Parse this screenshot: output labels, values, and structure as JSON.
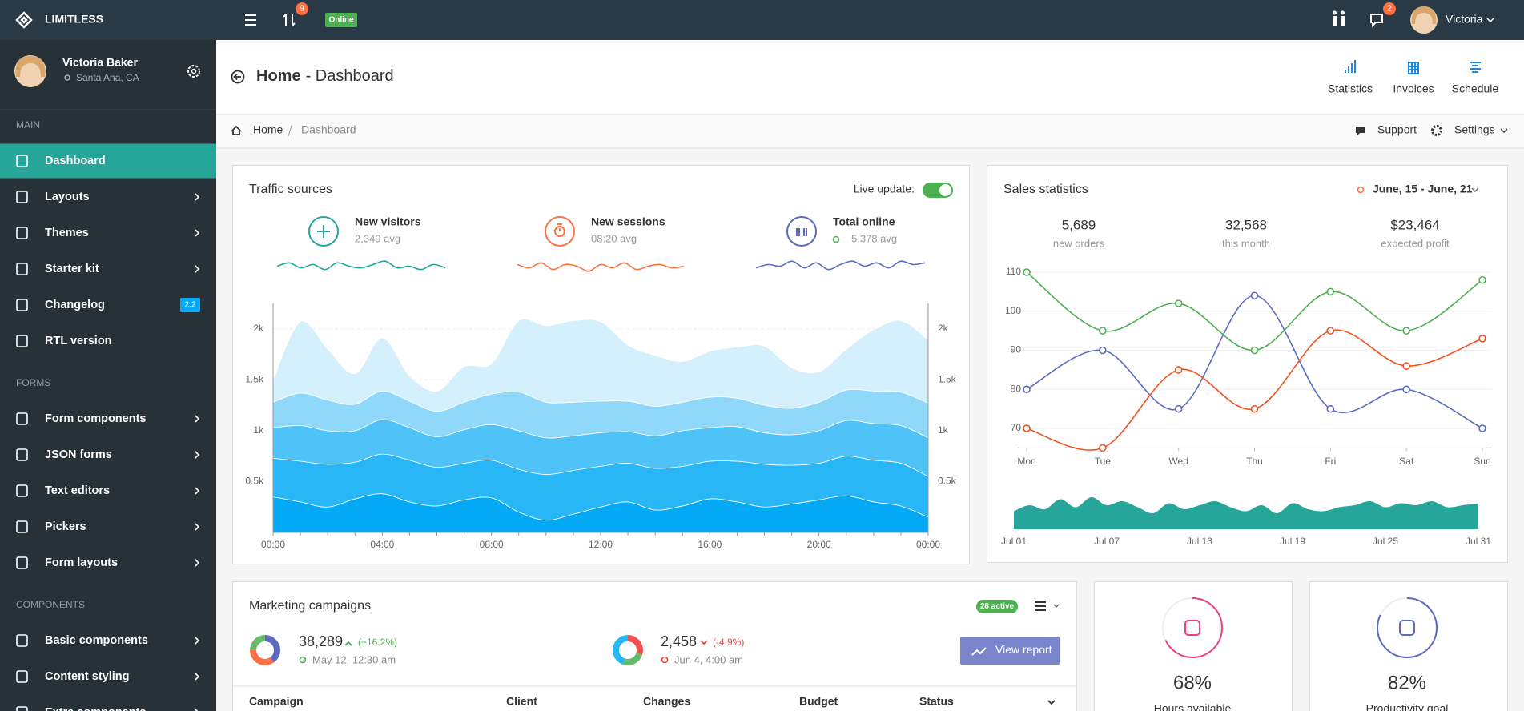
{
  "navbar": {
    "brand": "LIMITLESS",
    "updates_badge": "9",
    "status": "Online",
    "messages_badge": "2",
    "user": "Victoria"
  },
  "sidebar": {
    "user": {
      "name": "Victoria Baker",
      "location": "Santa Ana, CA"
    },
    "sections": [
      {
        "title": "MAIN",
        "items": [
          {
            "label": "Dashboard"
          },
          {
            "label": "Layouts"
          },
          {
            "label": "Themes"
          },
          {
            "label": "Starter kit"
          },
          {
            "label": "Changelog",
            "badge": "2.2"
          },
          {
            "label": "RTL version"
          }
        ]
      },
      {
        "title": "FORMS",
        "items": [
          {
            "label": "Form components"
          },
          {
            "label": "JSON forms"
          },
          {
            "label": "Text editors"
          },
          {
            "label": "Pickers"
          },
          {
            "label": "Form layouts"
          }
        ]
      },
      {
        "title": "COMPONENTS",
        "items": [
          {
            "label": "Basic components"
          },
          {
            "label": "Content styling"
          },
          {
            "label": "Extra components"
          }
        ]
      }
    ]
  },
  "page_header": {
    "title": "Home",
    "subtitle": "- Dashboard",
    "actions": [
      "Statistics",
      "Invoices",
      "Schedule"
    ]
  },
  "breadcrumb": {
    "items": [
      "Home",
      "Dashboard"
    ],
    "links": [
      "Support",
      "Settings"
    ]
  },
  "traffic": {
    "title": "Traffic sources",
    "live_label": "Live update:",
    "stats": [
      {
        "label": "New visitors",
        "value": "2,349 avg",
        "color": "#26a69a",
        "sparkline": [
          5,
          7,
          4,
          6,
          3,
          7,
          5,
          4,
          6,
          8,
          4,
          5,
          3,
          6,
          4
        ]
      },
      {
        "label": "New sessions",
        "value": "08:20 avg",
        "color": "#ff7043",
        "sparkline": [
          6,
          4,
          7,
          3,
          6,
          5,
          2,
          6,
          4,
          7,
          3,
          5,
          6,
          4,
          5
        ]
      },
      {
        "label": "Total online",
        "value": "5,378 avg",
        "color": "#5c6bc0",
        "sparkline": [
          4,
          6,
          5,
          8,
          4,
          7,
          3,
          6,
          8,
          5,
          7,
          4,
          8,
          6,
          7
        ]
      }
    ]
  },
  "sales": {
    "title": "Sales statistics",
    "range": "June, 15 - June, 21",
    "stats": [
      {
        "value": "5,689",
        "label": "new orders"
      },
      {
        "value": "32,568",
        "label": "this month"
      },
      {
        "value": "$23,464",
        "label": "expected profit"
      }
    ]
  },
  "marketing": {
    "title": "Marketing campaigns",
    "badge": "28 active",
    "button": "View report",
    "stats": [
      {
        "value": "38,289",
        "change": "(+16.2%)",
        "date": "May 12, 12:30 am",
        "donut": [
          40,
          35,
          25
        ],
        "colors": [
          "#5c6bc0",
          "#ff7043",
          "#66bb6a"
        ]
      },
      {
        "value": "2,458",
        "change": "(-4.9%)",
        "date": "Jun 4, 4:00 am",
        "donut": [
          30,
          25,
          45
        ],
        "colors": [
          "#ef5350",
          "#66bb6a",
          "#29b6f6"
        ]
      }
    ],
    "columns": [
      "Campaign",
      "Client",
      "Changes",
      "Budget",
      "Status"
    ]
  },
  "progress": [
    {
      "value": 68,
      "label": "68%",
      "caption": "Hours available",
      "color": "#ec407a"
    },
    {
      "value": 82,
      "label": "82%",
      "caption": "Productivity goal",
      "color": "#5c6bc0"
    }
  ],
  "chart_data": [
    {
      "type": "stacked_area",
      "categories": [
        "00:00",
        null,
        null,
        null,
        "04:00",
        null,
        null,
        null,
        "08:00",
        null,
        null,
        null,
        "12:00",
        null,
        null,
        null,
        "16:00",
        null,
        null,
        null,
        "20:00",
        null,
        null,
        null,
        "00:00"
      ],
      "series": [
        {
          "color": "#03a9f4",
          "values": [
            350,
            300,
            250,
            330,
            380,
            300,
            260,
            320,
            340,
            200,
            120,
            180,
            250,
            300,
            220,
            260,
            330,
            300,
            250,
            280,
            320,
            360,
            300,
            260,
            150
          ]
        },
        {
          "color": "#29b6f6",
          "values": [
            380,
            400,
            420,
            360,
            390,
            410,
            380,
            360,
            370,
            420,
            450,
            430,
            400,
            380,
            410,
            390,
            370,
            400,
            420,
            380,
            360,
            390,
            410,
            420,
            400
          ]
        },
        {
          "color": "#4fc3f7",
          "values": [
            300,
            350,
            330,
            310,
            340,
            320,
            300,
            330,
            350,
            380,
            360,
            340,
            330,
            310,
            320,
            350,
            330,
            340,
            310,
            300,
            320,
            350,
            360,
            370,
            380
          ]
        },
        {
          "color": "#8fd8fa",
          "values": [
            250,
            320,
            300,
            260,
            280,
            260,
            250,
            270,
            300,
            380,
            350,
            330,
            310,
            300,
            290,
            280,
            300,
            280,
            270,
            260,
            280,
            300,
            320,
            330,
            340
          ]
        },
        {
          "color": "#d4f0fd",
          "values": [
            220,
            700,
            500,
            300,
            520,
            250,
            200,
            350,
            300,
            700,
            750,
            800,
            780,
            550,
            500,
            400,
            450,
            500,
            580,
            400,
            300,
            400,
            600,
            700,
            620
          ]
        }
      ],
      "ylim": [
        0,
        2250
      ],
      "yticks": [
        {
          "value": 500,
          "label": "0.5k"
        },
        {
          "value": 1000,
          "label": "1k"
        },
        {
          "value": 1500,
          "label": "1.5k"
        },
        {
          "value": 2000,
          "label": "2k"
        }
      ],
      "grid": true
    },
    {
      "type": "line",
      "categories": [
        "Mon",
        "Tue",
        "Wed",
        "Thu",
        "Fri",
        "Sat",
        "Sun"
      ],
      "series": [
        {
          "color": "#4caf50",
          "values": [
            110,
            95,
            102,
            90,
            105,
            95,
            108
          ]
        },
        {
          "color": "#5c6bc0",
          "values": [
            80,
            90,
            75,
            104,
            75,
            80,
            70
          ]
        },
        {
          "color": "#f4511e",
          "values": [
            70,
            65,
            85,
            75,
            95,
            86,
            93
          ]
        }
      ],
      "ylim": [
        65,
        112
      ],
      "yticks": [
        70,
        80,
        90,
        100,
        110
      ],
      "grid": true
    },
    {
      "type": "area",
      "categories": [
        "Jul 01",
        null,
        null,
        null,
        null,
        null,
        "Jul 07",
        null,
        null,
        null,
        null,
        null,
        "Jul 13",
        null,
        null,
        null,
        null,
        null,
        "Jul 19",
        null,
        null,
        null,
        null,
        null,
        "Jul 25",
        null,
        null,
        null,
        null,
        null,
        "Jul 31"
      ],
      "values": [
        45,
        60,
        50,
        75,
        55,
        80,
        60,
        70,
        55,
        40,
        65,
        50,
        60,
        70,
        55,
        45,
        60,
        40,
        65,
        50,
        45,
        55,
        60,
        70,
        55,
        65,
        60,
        70,
        55,
        60,
        65
      ],
      "color": "#26a69a",
      "ylim": [
        0,
        100
      ]
    }
  ]
}
